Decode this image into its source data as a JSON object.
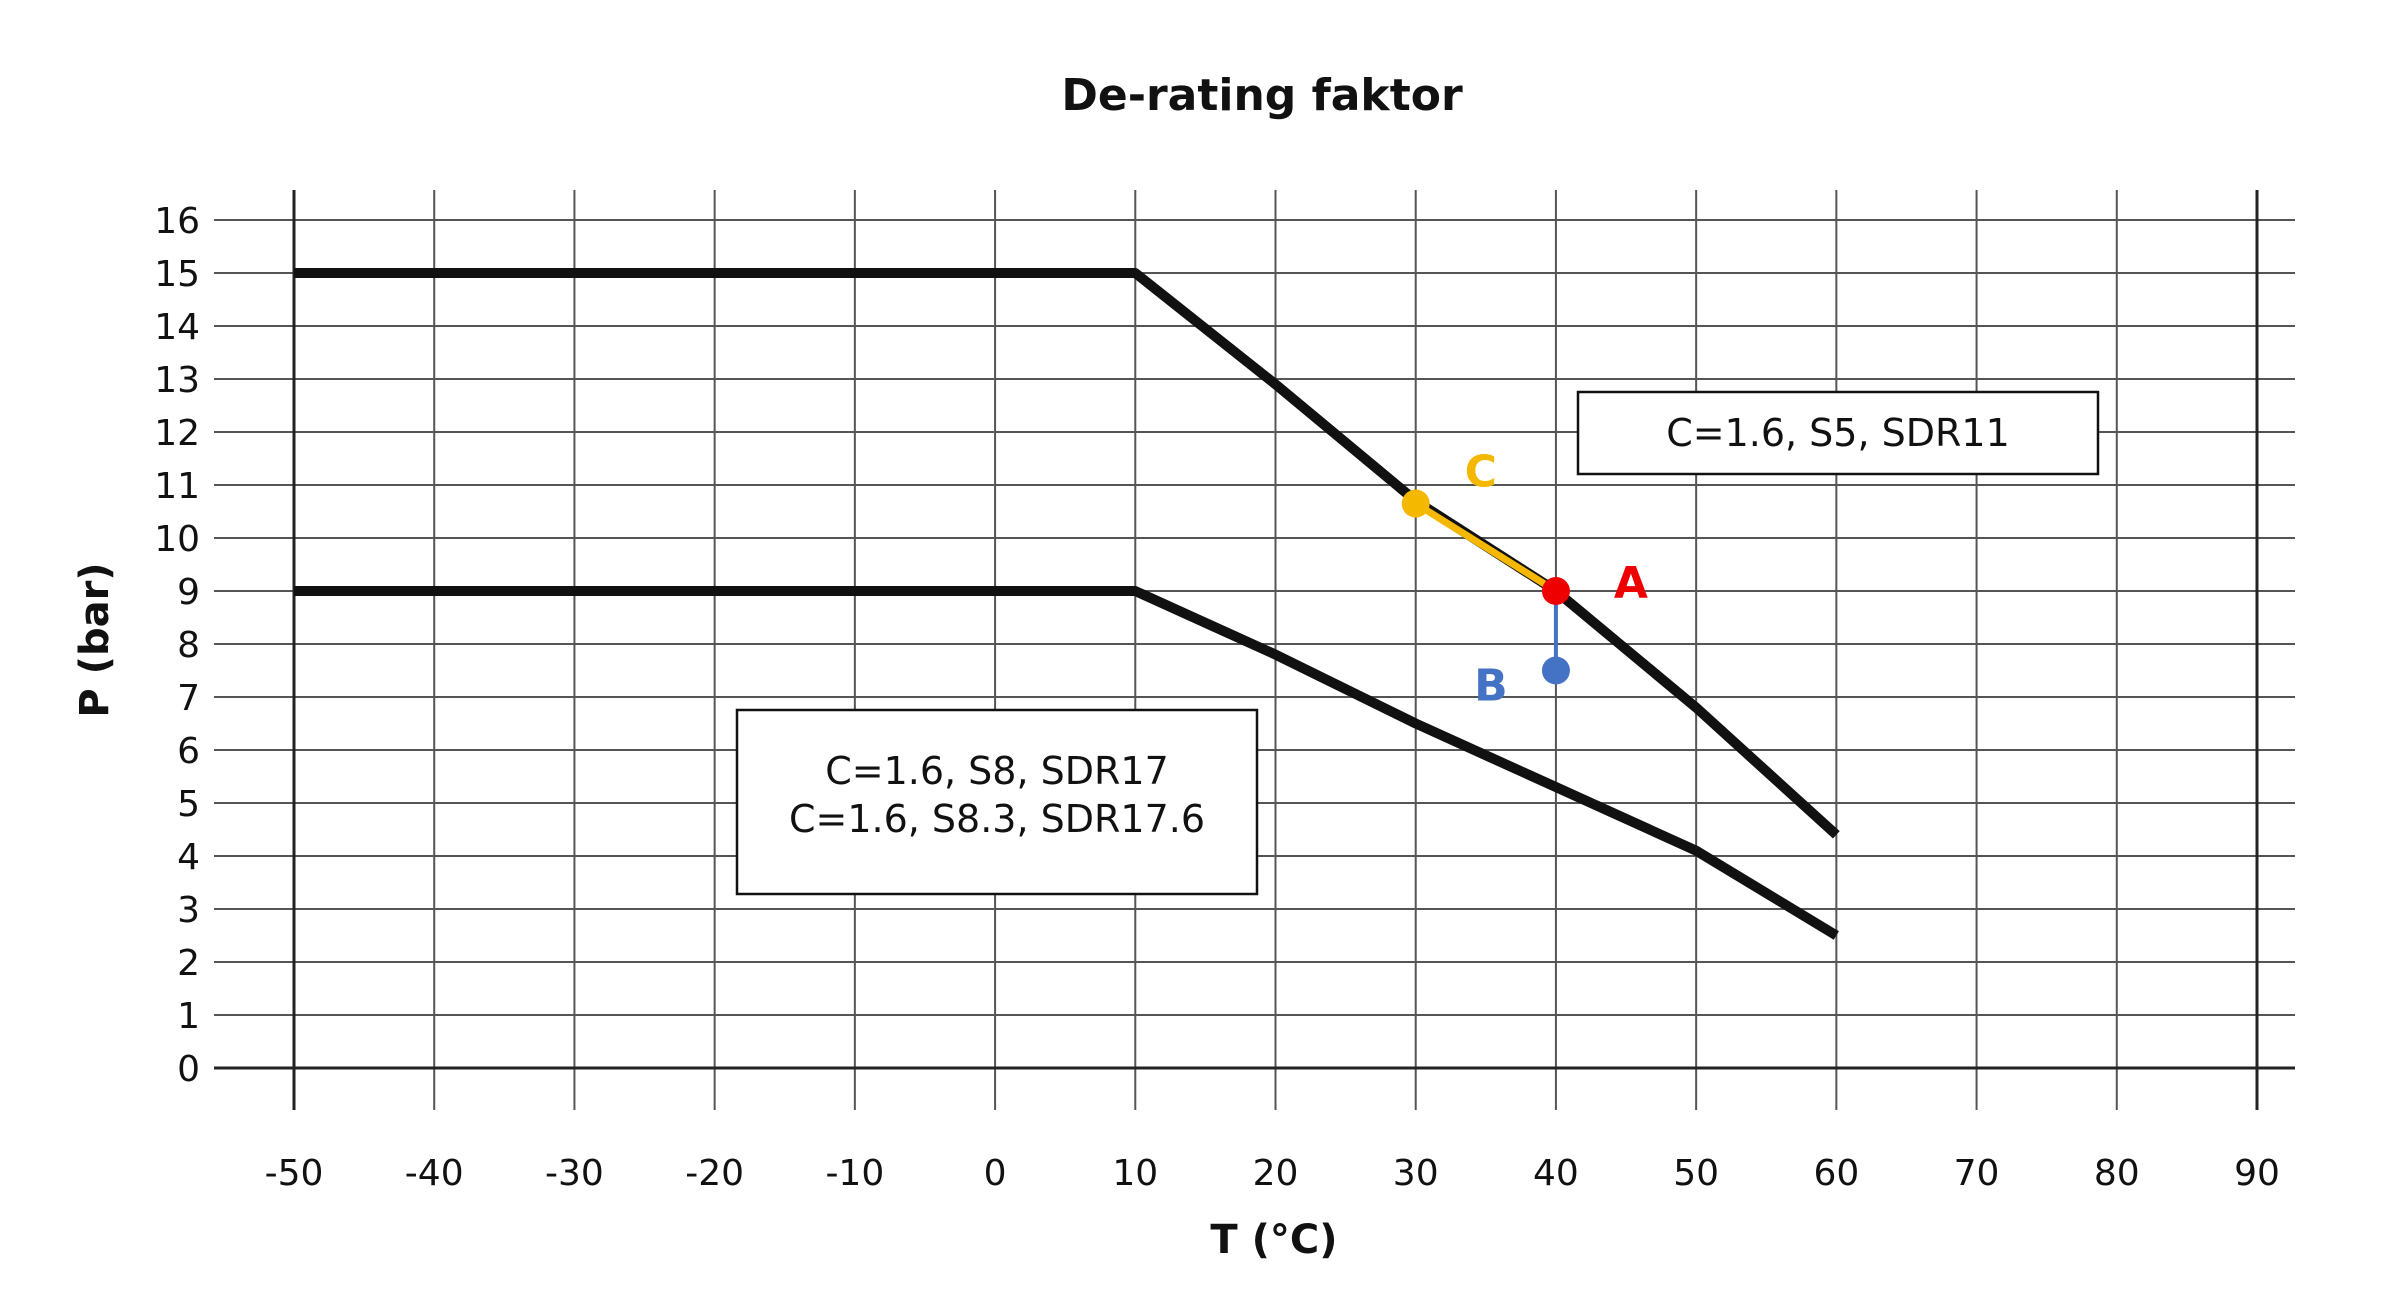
{
  "chart_data": {
    "type": "line",
    "title": "De-rating faktor",
    "xlabel": "T (°C)",
    "ylabel": "P (bar)",
    "xlim": [
      -50,
      90
    ],
    "ylim": [
      0,
      16
    ],
    "x_ticks": [
      "-50",
      "-40",
      "-30",
      "-20",
      "-10",
      "0",
      "10",
      "20",
      "30",
      "40",
      "50",
      "60",
      "70",
      "80",
      "90"
    ],
    "y_ticks": [
      "0",
      "1",
      "2",
      "3",
      "4",
      "5",
      "6",
      "7",
      "8",
      "9",
      "10",
      "11",
      "12",
      "13",
      "14",
      "15",
      "16"
    ],
    "grid": true,
    "series": [
      {
        "name": "",
        "x": [
          -50,
          10,
          20,
          30,
          40,
          50,
          60
        ],
        "y": [
          15,
          15,
          12.9,
          10.7,
          9,
          6.8,
          4.4
        ]
      },
      {
        "name": "",
        "x": [
          -50,
          10,
          20,
          30,
          40,
          50,
          60
        ],
        "y": [
          9,
          9,
          7.8,
          6.5,
          5.3,
          4.1,
          2.5
        ]
      }
    ],
    "annotations": {
      "box_upper": [
        "C=1.6, S5, SDR11"
      ],
      "box_lower": [
        "C=1.6, S8, SDR17",
        "C=1.6, S8.3, SDR17.6"
      ],
      "points": [
        {
          "label": "A",
          "x": 40,
          "y": 9,
          "color": "#ee0000"
        },
        {
          "label": "B",
          "x": 40,
          "y": 7.5,
          "color": "#4472c4"
        },
        {
          "label": "C",
          "x": 30,
          "y": 10.65,
          "color": "#f5b800"
        }
      ],
      "segment_A_B_color": "#4472c4",
      "segment_C_A_color": "#f5b800"
    }
  }
}
